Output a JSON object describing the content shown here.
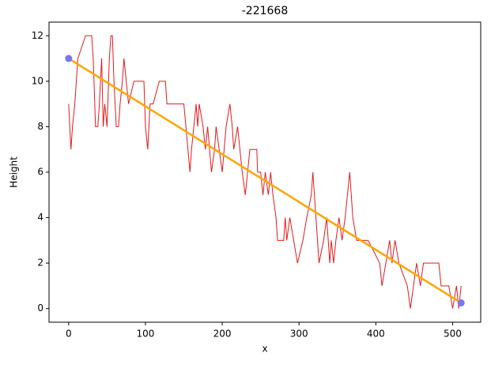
{
  "chart_data": {
    "type": "line",
    "title": "-221668",
    "xlabel": "x",
    "ylabel": "Height",
    "xlim": [
      -25.55,
      536.55
    ],
    "ylim": [
      -0.6,
      12.6
    ],
    "xticks": [
      0,
      100,
      200,
      300,
      400,
      500
    ],
    "yticks": [
      0,
      2,
      4,
      6,
      8,
      10,
      12
    ],
    "series": [
      {
        "style": "line",
        "color": "#e31a1c",
        "width": 1,
        "x": [
          0,
          3,
          5,
          8,
          10,
          12,
          22,
          30,
          32,
          35,
          38,
          40,
          43,
          45,
          47,
          50,
          53,
          55,
          57,
          59,
          62,
          65,
          67,
          70,
          72,
          75,
          78,
          85,
          98,
          100,
          103,
          106,
          110,
          118,
          126,
          128,
          150,
          158,
          160,
          163,
          166,
          168,
          170,
          175,
          178,
          181,
          186,
          190,
          192,
          196,
          200,
          205,
          210,
          213,
          215,
          220,
          226,
          230,
          233,
          236,
          245,
          246,
          250,
          253,
          256,
          260,
          263,
          266,
          270,
          272,
          280,
          282,
          284,
          288,
          293,
          298,
          305,
          310,
          316,
          318,
          322,
          326,
          332,
          336,
          340,
          342,
          345,
          348,
          352,
          356,
          360,
          366,
          370,
          375,
          390,
          405,
          408,
          413,
          418,
          421,
          425,
          430,
          441,
          445,
          449,
          453,
          458,
          462,
          482,
          485,
          495,
          500,
          505,
          508,
          511
        ],
        "values": [
          9,
          7,
          8,
          9,
          10,
          11,
          12,
          12,
          11,
          8,
          8,
          9,
          11,
          8,
          9,
          8,
          11,
          12,
          12,
          10,
          8,
          8,
          9,
          10,
          11,
          10,
          9,
          10,
          10,
          8,
          7,
          9,
          9,
          10,
          10,
          9,
          9,
          6,
          7,
          8,
          9,
          8,
          9,
          8,
          7,
          8,
          6,
          7,
          8,
          7,
          6,
          8,
          9,
          8,
          7,
          8,
          6,
          5,
          6,
          7,
          7,
          6,
          6,
          5,
          6,
          5,
          6,
          5,
          4,
          3,
          3,
          4,
          3,
          4,
          3,
          2,
          3,
          4,
          5,
          6,
          4,
          2,
          3,
          4,
          2,
          3,
          2,
          3,
          4,
          3,
          4,
          6,
          4,
          3,
          3,
          2,
          1,
          2,
          3,
          2,
          3,
          2,
          1,
          0,
          1,
          2,
          1,
          2,
          2,
          1,
          1,
          0,
          1,
          0,
          1
        ]
      },
      {
        "style": "line",
        "color": "#ffa500",
        "width": 2.5,
        "x": [
          0,
          511
        ],
        "values": [
          11,
          0.25
        ]
      },
      {
        "style": "scatter",
        "color": "#7777ee",
        "x": [
          0,
          511
        ],
        "values": [
          11,
          0.25
        ]
      }
    ]
  }
}
